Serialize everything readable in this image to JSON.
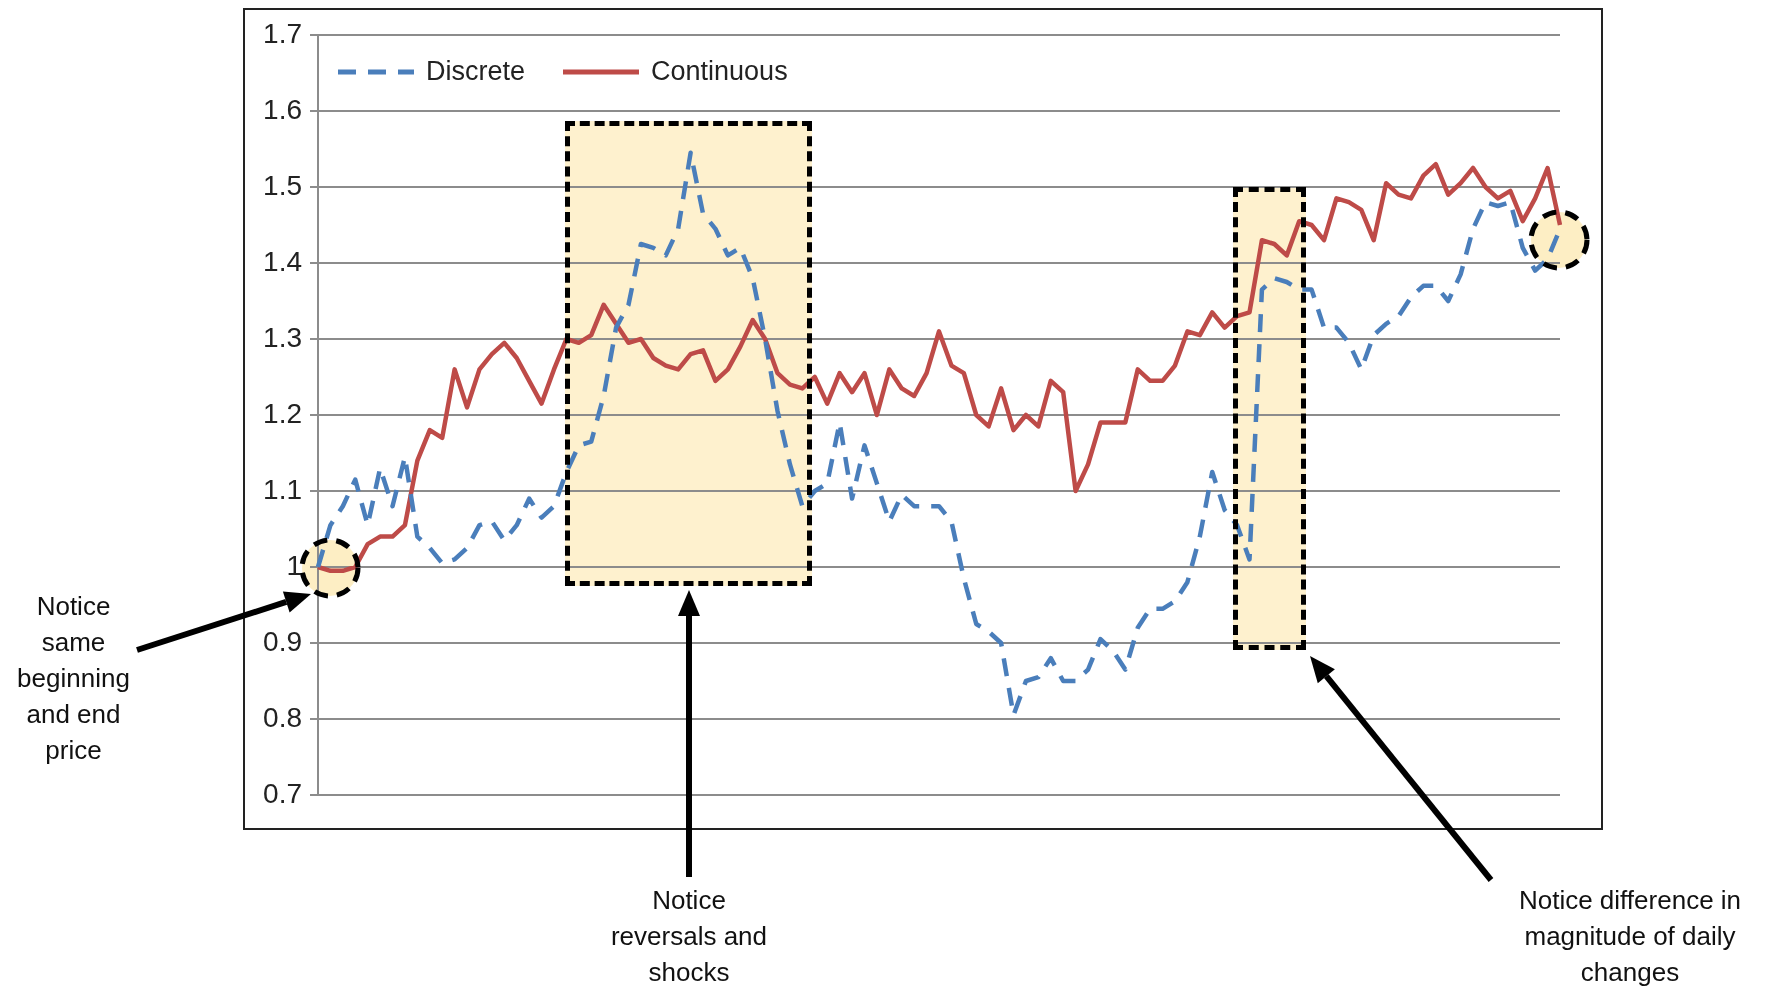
{
  "chart_data": {
    "type": "line",
    "categories": [
      null,
      null,
      null,
      null,
      null,
      null,
      null,
      null,
      null,
      null,
      null,
      null,
      null,
      null,
      null,
      null,
      null,
      null,
      null,
      null,
      null,
      null,
      null,
      null,
      null,
      null,
      null,
      null,
      null,
      null,
      null,
      null,
      null,
      null,
      null,
      null,
      null,
      null,
      null,
      null,
      null,
      null,
      null,
      null,
      null,
      null,
      null,
      null,
      null,
      null,
      null,
      null,
      null,
      null,
      null,
      null,
      null,
      null,
      null,
      null,
      null,
      null,
      null,
      null,
      null,
      null,
      null,
      null,
      null,
      null,
      null,
      null,
      null,
      null,
      null,
      null,
      null,
      null,
      null,
      null,
      null,
      null,
      null,
      null,
      null,
      null,
      null,
      null,
      null,
      null,
      null,
      null,
      null,
      null,
      null,
      null,
      null,
      null,
      null,
      null,
      null
    ],
    "series": [
      {
        "name": "Discrete",
        "color": "#4a7ebb",
        "line_style": "dashed",
        "values": [
          1.0,
          1.055,
          1.08,
          1.115,
          1.055,
          1.13,
          1.08,
          1.145,
          1.04,
          1.025,
          1.005,
          1.01,
          1.025,
          1.055,
          1.06,
          1.035,
          1.055,
          1.09,
          1.065,
          1.08,
          1.125,
          1.16,
          1.165,
          1.225,
          1.315,
          1.345,
          1.425,
          1.42,
          1.41,
          1.445,
          1.545,
          1.465,
          1.445,
          1.41,
          1.42,
          1.38,
          1.3,
          1.205,
          1.135,
          1.08,
          1.1,
          1.11,
          1.19,
          1.09,
          1.16,
          1.11,
          1.06,
          1.095,
          1.08,
          1.08,
          1.08,
          1.06,
          0.985,
          0.925,
          0.915,
          0.9,
          0.805,
          0.85,
          0.855,
          0.88,
          0.85,
          0.85,
          0.865,
          0.905,
          0.89,
          0.865,
          0.92,
          0.945,
          0.945,
          0.955,
          0.98,
          1.04,
          1.125,
          1.075,
          1.055,
          1.01,
          1.365,
          1.38,
          1.375,
          1.365,
          1.365,
          1.315,
          1.315,
          1.295,
          1.26,
          1.305,
          1.32,
          1.33,
          1.355,
          1.37,
          1.37,
          1.35,
          1.385,
          1.445,
          1.48,
          1.475,
          1.48,
          1.42,
          1.39,
          1.405,
          1.445
        ]
      },
      {
        "name": "Continuous",
        "color": "#be4b48",
        "line_style": "solid",
        "values": [
          1.0,
          0.995,
          0.995,
          1.0,
          1.03,
          1.04,
          1.04,
          1.055,
          1.14,
          1.18,
          1.17,
          1.26,
          1.21,
          1.26,
          1.28,
          1.295,
          1.275,
          1.245,
          1.215,
          1.26,
          1.3,
          1.295,
          1.305,
          1.345,
          1.32,
          1.295,
          1.3,
          1.275,
          1.265,
          1.26,
          1.28,
          1.285,
          1.245,
          1.26,
          1.29,
          1.325,
          1.3,
          1.255,
          1.24,
          1.235,
          1.25,
          1.215,
          1.255,
          1.23,
          1.255,
          1.2,
          1.26,
          1.235,
          1.225,
          1.255,
          1.31,
          1.265,
          1.255,
          1.2,
          1.185,
          1.235,
          1.18,
          1.2,
          1.185,
          1.245,
          1.23,
          1.1,
          1.135,
          1.19,
          1.19,
          1.19,
          1.26,
          1.245,
          1.245,
          1.265,
          1.31,
          1.305,
          1.335,
          1.315,
          1.33,
          1.335,
          1.43,
          1.425,
          1.41,
          1.455,
          1.45,
          1.43,
          1.485,
          1.48,
          1.47,
          1.43,
          1.505,
          1.49,
          1.485,
          1.515,
          1.53,
          1.49,
          1.505,
          1.525,
          1.5,
          1.485,
          1.495,
          1.455,
          1.485,
          1.525,
          1.45
        ]
      }
    ],
    "ylim": [
      0.7,
      1.7
    ],
    "yticks": [
      0.7,
      0.8,
      0.9,
      1,
      1.1,
      1.2,
      1.3,
      1.4,
      1.5,
      1.6,
      1.7
    ],
    "grid": "y",
    "legend": "top left",
    "marker": "none",
    "tick_labels": "y",
    "annotations": [
      "Notice same beginning and end price",
      "Notice reversals and shocks",
      "Notice difference in magnitude of daily changes"
    ]
  }
}
